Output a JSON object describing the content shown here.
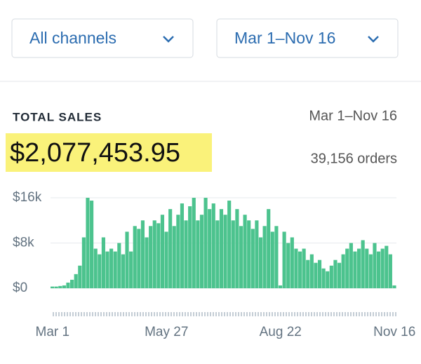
{
  "controls": {
    "channel": "All channels",
    "date_range": "Mar 1–Nov 16"
  },
  "summary": {
    "label": "TOTAL SALES",
    "range": "Mar 1–Nov 16",
    "total": "$2,077,453.95",
    "orders": "39,156 orders"
  },
  "chart_data": {
    "type": "bar",
    "color": "#4cc38e",
    "grid": true,
    "categories": [
      "Mar 1",
      null,
      null,
      null,
      null,
      null,
      null,
      null,
      null,
      null,
      null,
      null,
      null,
      null,
      null,
      null,
      null,
      null,
      null,
      null,
      null,
      null,
      null,
      null,
      null,
      null,
      null,
      null,
      null,
      "May 27",
      null,
      null,
      null,
      null,
      null,
      null,
      null,
      null,
      null,
      null,
      null,
      null,
      null,
      null,
      null,
      null,
      null,
      null,
      null,
      null,
      null,
      null,
      null,
      null,
      null,
      null,
      null,
      null,
      "Aug 22",
      null,
      null,
      null,
      null,
      null,
      null,
      null,
      null,
      null,
      null,
      null,
      null,
      null,
      null,
      null,
      null,
      null,
      null,
      null,
      null,
      null,
      null,
      null,
      null,
      null,
      null,
      null,
      null,
      "Nov 16"
    ],
    "values": [
      300,
      300,
      400,
      500,
      1000,
      1500,
      2500,
      4000,
      9000,
      16000,
      15500,
      7000,
      6000,
      9000,
      6500,
      7000,
      6500,
      8000,
      6000,
      10000,
      6500,
      11000,
      10500,
      12000,
      9000,
      11000,
      12000,
      11500,
      13000,
      10000,
      14000,
      11000,
      13000,
      15000,
      12000,
      14500,
      16000,
      12000,
      13000,
      16000,
      14000,
      15000,
      12000,
      14000,
      13000,
      15500,
      12000,
      14000,
      11000,
      13000,
      12000,
      10500,
      12000,
      9000,
      11000,
      14000,
      10000,
      11000,
      500,
      10000,
      8000,
      9000,
      7000,
      6500,
      7000,
      5000,
      6000,
      4500,
      5000,
      3500,
      3000,
      4000,
      5000,
      4500,
      6000,
      7000,
      8000,
      6500,
      7000,
      8500,
      7000,
      6000,
      8000,
      6500,
      7000,
      7500,
      6000,
      500
    ],
    "ylim": [
      0,
      16000
    ],
    "yticks": [
      {
        "value": 0,
        "label": "$0"
      },
      {
        "value": 8000,
        "label": "$8k"
      },
      {
        "value": 16000,
        "label": "$16k"
      }
    ]
  }
}
